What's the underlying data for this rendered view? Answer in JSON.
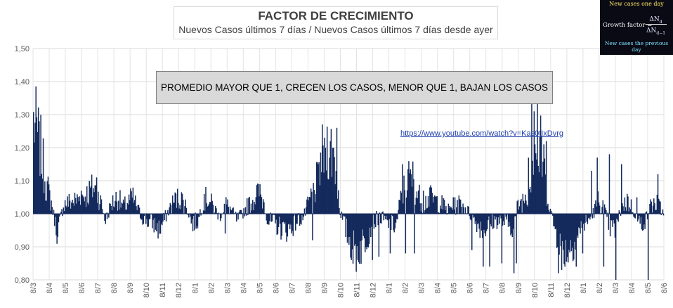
{
  "chart_data": {
    "type": "bar",
    "title": "FACTOR DE CRECIMIENTO",
    "subtitle": "Nuevos Casos últimos 7 días / Nuevos Casos últimos 7 días desde ayer",
    "annotation": "PROMEDIO MAYOR QUE 1, CRECEN LOS CASOS, MENOR QUE 1, BAJAN LOS CASOS",
    "link_text": "https://www.youtube.com/watch?v=Kas0tIxDvrg",
    "baseline": 1.0,
    "ylim": [
      0.8,
      1.5
    ],
    "y_ticks": [
      "0,80",
      "0,90",
      "1,00",
      "1,10",
      "1,20",
      "1,30",
      "1,40",
      "1,50"
    ],
    "x_tick_labels": [
      "8/3",
      "8/4",
      "8/5",
      "8/6",
      "8/7",
      "8/8",
      "8/9",
      "8/10",
      "8/11",
      "8/12",
      "8/1",
      "8/2",
      "8/3",
      "8/4",
      "8/5",
      "8/6",
      "8/7",
      "8/8",
      "8/9",
      "8/10",
      "8/11",
      "8/12",
      "8/1",
      "8/2",
      "8/3",
      "8/4",
      "8/5",
      "8/6",
      "8/7",
      "8/8",
      "8/9",
      "8/10",
      "8/11",
      "8/12",
      "8/1",
      "8/2",
      "8/3",
      "8/4",
      "8/5",
      "8/6"
    ],
    "grid": true,
    "series_color": "#142a5c",
    "profile_points": [
      [
        0,
        1.28
      ],
      [
        2,
        1.22
      ],
      [
        4,
        1.1
      ],
      [
        6,
        1.03
      ],
      [
        8,
        0.94
      ],
      [
        10,
        1.03
      ],
      [
        14,
        1.04
      ],
      [
        18,
        1.06
      ],
      [
        20,
        1.08
      ],
      [
        22,
        1.05
      ],
      [
        24,
        0.98
      ],
      [
        26,
        1.03
      ],
      [
        28,
        1.05
      ],
      [
        30,
        1.02
      ],
      [
        33,
        1.05
      ],
      [
        34,
        1.03
      ],
      [
        36,
        0.99
      ],
      [
        40,
        0.97
      ],
      [
        42,
        0.95
      ],
      [
        45,
        1.01
      ],
      [
        47,
        1.04
      ],
      [
        49,
        1.05
      ],
      [
        51,
        1.02
      ],
      [
        53,
        0.97
      ],
      [
        55,
        0.98
      ],
      [
        56,
        1.03
      ],
      [
        58,
        1.05
      ],
      [
        60,
        1.02
      ],
      [
        62,
        0.99
      ],
      [
        64,
        1.03
      ],
      [
        66,
        1.01
      ],
      [
        68,
        0.98
      ],
      [
        71,
        1.02
      ],
      [
        73,
        1.04
      ],
      [
        75,
        1.07
      ],
      [
        77,
        1.03
      ],
      [
        78,
        0.98
      ],
      [
        80,
        0.97
      ],
      [
        82,
        0.96
      ],
      [
        84,
        0.95
      ],
      [
        86,
        0.96
      ],
      [
        88,
        0.98
      ],
      [
        90,
        0.99
      ],
      [
        92,
        1.04
      ],
      [
        94,
        1.08
      ],
      [
        96,
        1.17
      ],
      [
        98,
        1.21
      ],
      [
        100,
        1.18
      ],
      [
        101,
        1.12
      ],
      [
        102,
        1.02
      ],
      [
        103,
        0.98
      ],
      [
        105,
        0.93
      ],
      [
        107,
        0.88
      ],
      [
        109,
        0.9
      ],
      [
        111,
        0.93
      ],
      [
        113,
        0.97
      ],
      [
        115,
        0.99
      ],
      [
        117,
        0.98
      ],
      [
        119,
        0.96
      ],
      [
        121,
        0.97
      ],
      [
        122,
        1.03
      ],
      [
        124,
        1.09
      ],
      [
        126,
        1.12
      ],
      [
        128,
        1.06
      ],
      [
        130,
        1.03
      ],
      [
        132,
        1.05
      ],
      [
        134,
        1.04
      ],
      [
        136,
        1.03
      ],
      [
        138,
        1.01
      ],
      [
        140,
        1.02
      ],
      [
        142,
        1.03
      ],
      [
        144,
        1.02
      ],
      [
        146,
        0.99
      ],
      [
        148,
        0.97
      ],
      [
        150,
        0.95
      ],
      [
        152,
        0.97
      ],
      [
        154,
        0.98
      ],
      [
        156,
        0.98
      ],
      [
        158,
        0.97
      ],
      [
        160,
        0.96
      ],
      [
        161,
        1.02
      ],
      [
        163,
        1.04
      ],
      [
        165,
        1.07
      ],
      [
        166,
        1.12
      ],
      [
        167,
        1.25
      ],
      [
        168,
        1.15
      ],
      [
        169,
        1.2
      ],
      [
        171,
        1.08
      ],
      [
        173,
        0.98
      ],
      [
        175,
        0.92
      ],
      [
        177,
        0.88
      ],
      [
        179,
        0.9
      ],
      [
        181,
        0.93
      ],
      [
        183,
        0.96
      ],
      [
        185,
        0.98
      ],
      [
        187,
        1.01
      ],
      [
        188,
        1.04
      ],
      [
        190,
        1.02
      ],
      [
        192,
        0.96
      ],
      [
        194,
        0.95
      ],
      [
        196,
        1.02
      ],
      [
        198,
        1.04
      ],
      [
        200,
        1.01
      ],
      [
        202,
        0.97
      ],
      [
        204,
        0.98
      ],
      [
        206,
        1.03
      ],
      [
        208,
        1.03
      ],
      [
        210,
        1.0
      ]
    ],
    "spikes": [
      [
        168,
        1.4
      ],
      [
        166,
        1.36
      ],
      [
        167,
        1.31
      ],
      [
        2,
        1.28
      ],
      [
        192,
        1.18
      ],
      [
        188,
        1.17
      ],
      [
        196,
        1.15
      ],
      [
        186,
        1.13
      ],
      [
        208,
        1.12
      ],
      [
        205,
        1.06
      ],
      [
        201,
        1.05
      ],
      [
        171,
        1.22
      ],
      [
        170,
        1.21
      ],
      [
        165,
        1.17
      ],
      [
        175,
        0.82
      ],
      [
        176,
        0.83
      ],
      [
        177,
        0.84
      ],
      [
        181,
        0.84
      ],
      [
        183,
        0.88
      ],
      [
        190,
        0.84
      ],
      [
        194,
        0.8
      ],
      [
        205,
        0.8
      ],
      [
        211,
        0.94
      ],
      [
        150,
        0.84
      ],
      [
        152,
        0.84
      ],
      [
        156,
        0.85
      ],
      [
        160,
        0.82
      ],
      [
        161,
        0.85
      ],
      [
        146,
        0.89
      ],
      [
        124,
        0.88
      ],
      [
        127,
        0.88
      ],
      [
        108,
        0.86
      ],
      [
        106,
        0.86
      ],
      [
        93,
        0.92
      ],
      [
        64,
        0.94
      ],
      [
        38,
        0.96
      ],
      [
        8,
        0.93
      ],
      [
        101,
        1.26
      ],
      [
        97,
        1.23
      ],
      [
        99,
        1.22
      ],
      [
        123,
        1.15
      ],
      [
        126,
        1.12
      ],
      [
        21,
        1.11
      ],
      [
        16,
        1.07
      ],
      [
        75,
        1.09
      ],
      [
        57,
        1.06
      ],
      [
        95,
        1.15
      ],
      [
        130,
        1.07
      ],
      [
        132,
        1.08
      ],
      [
        113,
        0.86
      ],
      [
        115,
        0.87
      ],
      [
        119,
        0.88
      ],
      [
        140,
        1.05
      ]
    ]
  },
  "formula": {
    "top_text": "New cases one day",
    "lhs": "Growth factor =",
    "numerator": "ΔN",
    "numerator_sub": "d",
    "denominator": "ΔN",
    "denominator_sub": "d−1",
    "bottom_text": "New cases the previous day"
  }
}
